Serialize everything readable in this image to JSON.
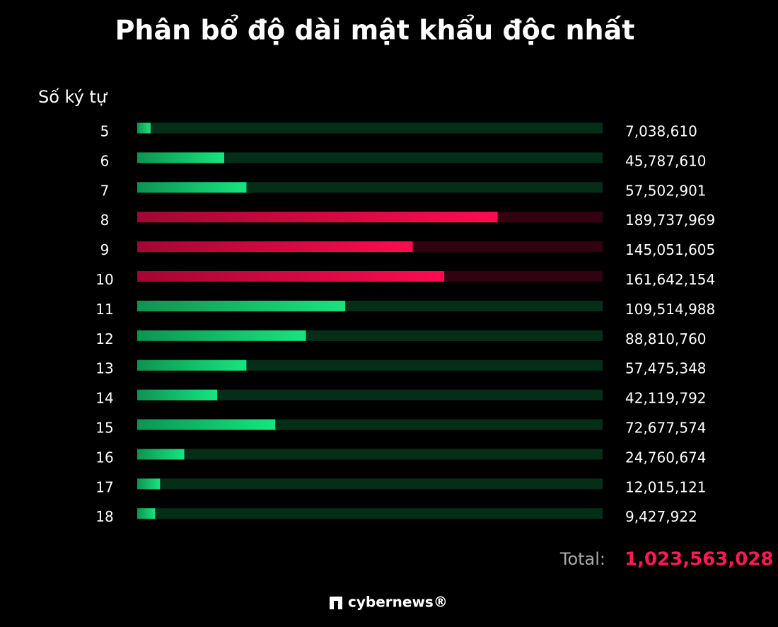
{
  "chart_data": {
    "type": "bar",
    "orientation": "horizontal",
    "title": "Phân bổ độ dài mật khẩu độc nhất",
    "y_axis_label": "Số ký tự",
    "categories": [
      "5",
      "6",
      "7",
      "8",
      "9",
      "10",
      "11",
      "12",
      "13",
      "14",
      "15",
      "16",
      "17",
      "18"
    ],
    "values": [
      7038610,
      45787610,
      57502901,
      189737969,
      145051605,
      161642154,
      109514988,
      88810760,
      57475348,
      42119792,
      72677574,
      24760674,
      12015121,
      9427922
    ],
    "value_labels": [
      "7,038,610",
      "45,787,610",
      "57,502,901",
      "189,737,969",
      "145,051,605",
      "161,642,154",
      "109,514,988",
      "88,810,760",
      "57,475,348",
      "42,119,792",
      "72,677,574",
      "24,760,674",
      "12,015,121",
      "9,427,922"
    ],
    "colors": [
      "#17e57f",
      "#17e57f",
      "#17e57f",
      "#ff0a50",
      "#ff0a50",
      "#ff0a50",
      "#17e57f",
      "#17e57f",
      "#17e57f",
      "#17e57f",
      "#17e57f",
      "#17e57f",
      "#17e57f",
      "#17e57f"
    ],
    "xlim": [
      0,
      245000000
    ],
    "total_label": "Total:",
    "total": "1,023,563,028",
    "total_color": "#ff1a55",
    "brand": "cybernews®"
  }
}
